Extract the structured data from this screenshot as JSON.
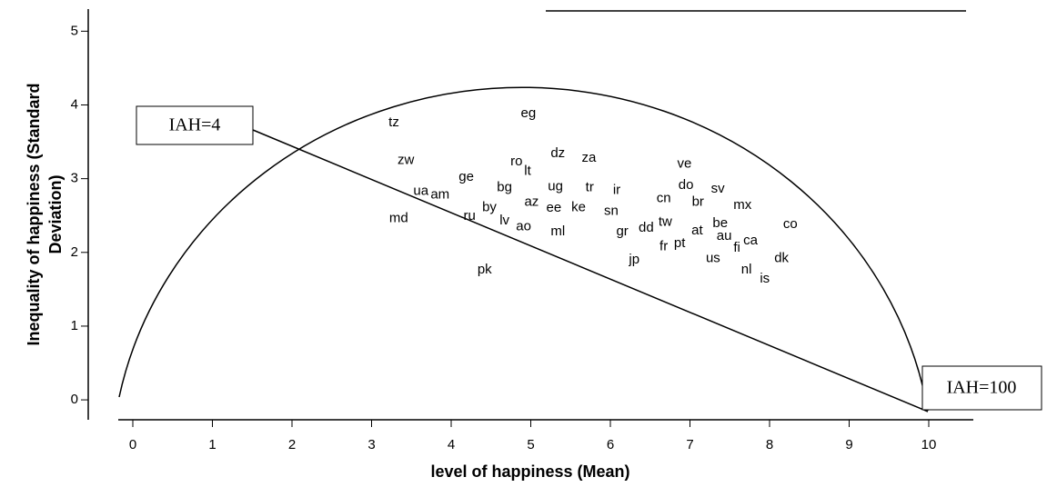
{
  "chart_data": {
    "type": "scatter",
    "x_label": "level of happiness (Mean)",
    "y_label": [
      "Inequality of happiness (Standard",
      "Deviation)"
    ],
    "annotations": [
      "IAH=4",
      "IAH=100"
    ],
    "labels": [
      "tz",
      "eg",
      "zw",
      "ro",
      "lt",
      "dz",
      "za",
      "ve",
      "ge",
      "do",
      "sv",
      "bg",
      "ug",
      "tr",
      "ir",
      "ua",
      "am",
      "cn",
      "br",
      "mx",
      "by",
      "az",
      "ee",
      "ke",
      "sn",
      "md",
      "ru",
      "lv",
      "ao",
      "tw",
      "be",
      "co",
      "ml",
      "gr",
      "dd",
      "at",
      "au",
      "ca",
      "pt",
      "fr",
      "fi",
      "dk",
      "jp",
      "us",
      "pk",
      "nl",
      "is"
    ],
    "x": [
      3.28,
      4.97,
      3.43,
      4.82,
      4.96,
      5.34,
      5.73,
      6.93,
      4.19,
      6.95,
      7.35,
      4.67,
      5.31,
      5.74,
      6.08,
      3.62,
      3.86,
      6.67,
      7.1,
      7.66,
      4.48,
      5.01,
      5.29,
      5.6,
      6.01,
      3.34,
      4.23,
      4.67,
      4.91,
      6.69,
      7.38,
      8.26,
      5.34,
      6.15,
      6.45,
      7.09,
      7.43,
      7.76,
      6.87,
      6.67,
      7.59,
      8.15,
      6.3,
      7.29,
      4.42,
      7.71,
      7.94
    ],
    "y": [
      3.76,
      3.88,
      3.25,
      3.23,
      3.1,
      3.34,
      3.28,
      3.2,
      3.02,
      2.91,
      2.86,
      2.88,
      2.89,
      2.88,
      2.84,
      2.83,
      2.78,
      2.73,
      2.68,
      2.64,
      2.61,
      2.68,
      2.6,
      2.61,
      2.56,
      2.46,
      2.49,
      2.43,
      2.35,
      2.41,
      2.39,
      2.38,
      2.28,
      2.28,
      2.33,
      2.29,
      2.22,
      2.16,
      2.12,
      2.08,
      2.06,
      1.92,
      1.9,
      1.92,
      1.76,
      1.76,
      1.64
    ],
    "xlim": [
      -0.56,
      10.56
    ],
    "ylim": [
      -0.27,
      5.3
    ],
    "xticks": [
      0,
      1,
      2,
      3,
      4,
      5,
      6,
      7,
      8,
      9,
      10
    ],
    "yticks": [
      0,
      1,
      2,
      3,
      4,
      5
    ]
  }
}
